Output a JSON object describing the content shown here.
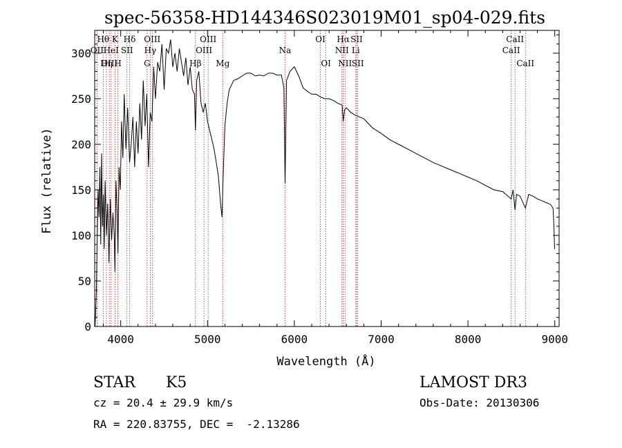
{
  "chart_data": {
    "type": "line",
    "title": "spec-56358-HD144346S023019M01_sp04-029.fits",
    "xlabel": "Wavelength (Å)",
    "ylabel": "Flux (relative)",
    "xlim": [
      3700,
      9050
    ],
    "ylim": [
      0,
      325
    ],
    "xticks": [
      4000,
      5000,
      6000,
      7000,
      8000,
      9000
    ],
    "xtick_labels": [
      "4000",
      "5000",
      "6000",
      "7000",
      "8000",
      "9000"
    ],
    "yticks": [
      0,
      50,
      100,
      150,
      200,
      250,
      300
    ],
    "ytick_labels": [
      "0",
      "50",
      "100",
      "150",
      "200",
      "250",
      "300"
    ],
    "series": [
      {
        "name": "flux",
        "x": [
          3705,
          3720,
          3730,
          3740,
          3750,
          3760,
          3770,
          3780,
          3790,
          3800,
          3810,
          3820,
          3835,
          3850,
          3865,
          3880,
          3895,
          3910,
          3925,
          3933,
          3945,
          3960,
          3968,
          3980,
          3995,
          4010,
          4025,
          4040,
          4060,
          4080,
          4102,
          4120,
          4140,
          4160,
          4180,
          4200,
          4220,
          4240,
          4260,
          4280,
          4300,
          4320,
          4340,
          4360,
          4380,
          4400,
          4425,
          4450,
          4475,
          4500,
          4525,
          4550,
          4575,
          4600,
          4625,
          4650,
          4675,
          4700,
          4725,
          4750,
          4775,
          4800,
          4825,
          4850,
          4861,
          4875,
          4900,
          4925,
          4950,
          4975,
          5000,
          5025,
          5050,
          5075,
          5100,
          5125,
          5150,
          5167,
          5175,
          5183,
          5200,
          5225,
          5250,
          5300,
          5350,
          5400,
          5450,
          5500,
          5550,
          5600,
          5650,
          5700,
          5750,
          5800,
          5850,
          5880,
          5893,
          5910,
          5950,
          6000,
          6050,
          6100,
          6150,
          6200,
          6250,
          6300,
          6350,
          6400,
          6450,
          6500,
          6550,
          6563,
          6580,
          6600,
          6650,
          6700,
          6750,
          6800,
          6850,
          6900,
          6950,
          7000,
          7100,
          7200,
          7300,
          7400,
          7500,
          7600,
          7700,
          7800,
          7900,
          8000,
          8100,
          8200,
          8300,
          8400,
          8498,
          8520,
          8542,
          8560,
          8600,
          8662,
          8700,
          8750,
          8800,
          8850,
          8900,
          8950,
          8980,
          8990,
          8998
        ],
        "y": [
          0,
          40,
          105,
          150,
          120,
          175,
          90,
          190,
          110,
          145,
          85,
          160,
          100,
          135,
          70,
          140,
          95,
          125,
          100,
          60,
          160,
          120,
          80,
          175,
          150,
          225,
          185,
          255,
          195,
          240,
          180,
          200,
          230,
          175,
          225,
          190,
          245,
          205,
          270,
          220,
          255,
          175,
          235,
          225,
          285,
          250,
          290,
          280,
          310,
          260,
          305,
          300,
          315,
          285,
          300,
          280,
          305,
          290,
          275,
          295,
          265,
          285,
          260,
          255,
          215,
          270,
          280,
          245,
          235,
          245,
          225,
          215,
          205,
          195,
          180,
          165,
          135,
          120,
          150,
          175,
          220,
          245,
          260,
          270,
          272,
          275,
          278,
          278,
          275,
          276,
          275,
          278,
          278,
          276,
          276,
          262,
          157,
          270,
          280,
          285,
          275,
          262,
          258,
          255,
          255,
          252,
          250,
          250,
          248,
          245,
          243,
          225,
          238,
          240,
          235,
          232,
          230,
          228,
          223,
          218,
          215,
          212,
          205,
          200,
          195,
          190,
          185,
          180,
          176,
          172,
          168,
          164,
          160,
          155,
          150,
          148,
          140,
          150,
          128,
          145,
          143,
          130,
          145,
          143,
          140,
          138,
          136,
          134,
          130,
          110,
          85
        ]
      }
    ],
    "line_markers": [
      {
        "name": "Hθ",
        "x": 3798,
        "row": 1
      },
      {
        "name": "OII",
        "x": 3727,
        "row": 2
      },
      {
        "name": "OIII",
        "x": 3869,
        "row": 3
      },
      {
        "name": "K",
        "x": 3934,
        "row": 1
      },
      {
        "name": "HeI",
        "x": 3889,
        "row": 2
      },
      {
        "name": "Hη",
        "x": 3835,
        "row": 3
      },
      {
        "name": "Hδ",
        "x": 4102,
        "row": 1
      },
      {
        "name": "SII",
        "x": 4072,
        "row": 2
      },
      {
        "name": "H",
        "x": 3968,
        "row": 3
      },
      {
        "name": "OIII",
        "x": 4363,
        "row": 1
      },
      {
        "name": "Hγ",
        "x": 4340,
        "row": 2
      },
      {
        "name": "G",
        "x": 4304,
        "row": 3
      },
      {
        "name": "OIII",
        "x": 5007,
        "row": 1
      },
      {
        "name": "OIII",
        "x": 4959,
        "row": 2
      },
      {
        "name": "Hβ",
        "x": 4861,
        "row": 3
      },
      {
        "name": "Mg",
        "x": 5175,
        "row": 3
      },
      {
        "name": "Na",
        "x": 5893,
        "row": 2
      },
      {
        "name": "OI",
        "x": 6300,
        "row": 1
      },
      {
        "name": "OI",
        "x": 6364,
        "row": 3
      },
      {
        "name": "Hα",
        "x": 6563,
        "row": 1
      },
      {
        "name": "NII",
        "x": 6548,
        "row": 2
      },
      {
        "name": "NII",
        "x": 6584,
        "row": 3
      },
      {
        "name": "SII",
        "x": 6717,
        "row": 1
      },
      {
        "name": "Li",
        "x": 6708,
        "row": 2
      },
      {
        "name": "SII",
        "x": 6731,
        "row": 3
      },
      {
        "name": "CaII",
        "x": 8542,
        "row": 1
      },
      {
        "name": "CaII",
        "x": 8498,
        "row": 2
      },
      {
        "name": "CaII",
        "x": 8662,
        "row": 3
      }
    ]
  },
  "info": {
    "object_class": "STAR",
    "subclass": "K5",
    "survey": "LAMOST DR3",
    "redshift": "cz = 20.4 ± 29.9 km/s",
    "obs_date": "Obs-Date: 20130306",
    "coordinates": "RA = 220.83755, DEC =  -2.13286"
  }
}
